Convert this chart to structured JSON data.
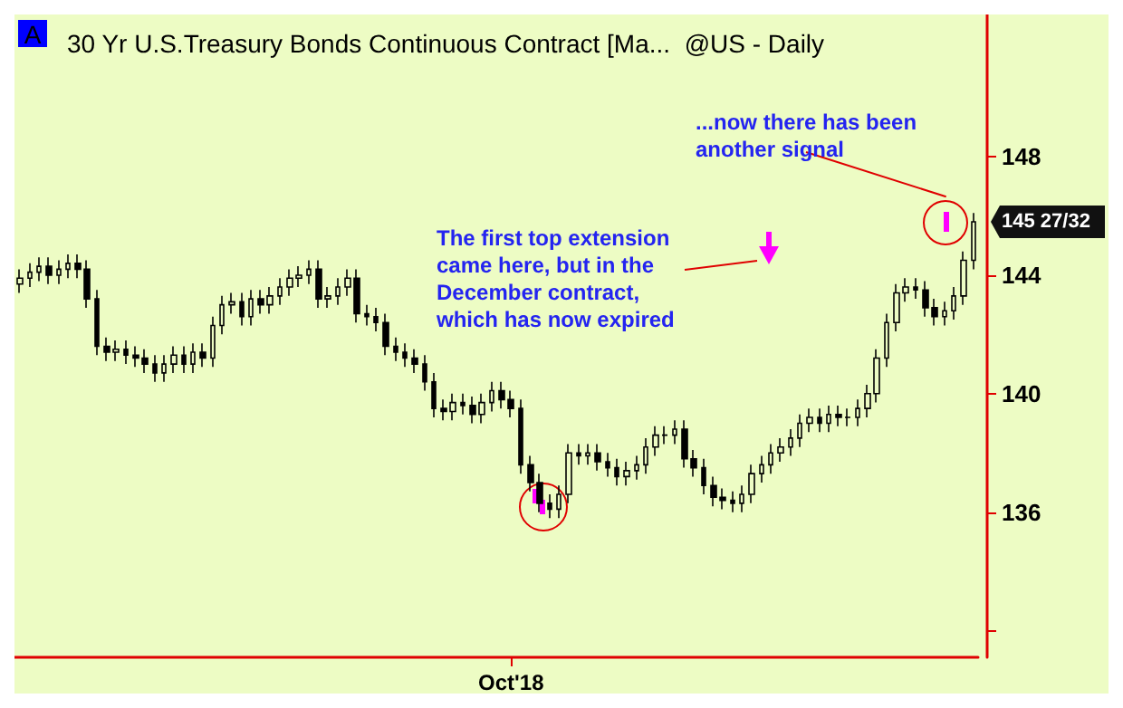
{
  "chart_data": {
    "type": "candlestick",
    "title": "30 Yr U.S.Treasury Bonds Continuous Contract [Ma...  @US - Daily",
    "annotations": [
      "A",
      "The first top extension\ncame here, but in the\nDecember contract,\nwhich has now expired",
      "...now there has been\nanother signal",
      "145 27/32"
    ],
    "categories": [
      null,
      null,
      null,
      null,
      null,
      null,
      null,
      null,
      null,
      null,
      null,
      null,
      null,
      null,
      null,
      null,
      null,
      null,
      null,
      null,
      null,
      null,
      null,
      null,
      null,
      null,
      null,
      null,
      null,
      null,
      null,
      null,
      null,
      null,
      null,
      null,
      null,
      null,
      null,
      null,
      null,
      null,
      null,
      null,
      null,
      null,
      null,
      null,
      null,
      null,
      null,
      "Oct'18",
      null,
      null,
      null,
      null,
      null,
      null,
      null,
      null,
      null,
      null,
      null,
      null,
      null,
      null,
      null,
      null,
      null,
      null,
      null,
      null,
      null,
      null,
      null,
      null,
      null,
      null,
      null,
      null,
      null,
      null,
      null,
      null,
      null,
      null,
      null,
      null,
      null,
      null,
      null,
      null,
      null,
      null,
      null,
      null,
      null,
      null,
      null,
      null
    ],
    "ohlc": [
      [
        143.7,
        144.2,
        143.4,
        143.9
      ],
      [
        143.9,
        144.4,
        143.6,
        144.1
      ],
      [
        144.1,
        144.6,
        143.8,
        144.3
      ],
      [
        144.3,
        144.6,
        143.7,
        144.0
      ],
      [
        144.0,
        144.5,
        143.7,
        144.2
      ],
      [
        144.2,
        144.7,
        143.9,
        144.4
      ],
      [
        144.4,
        144.7,
        143.9,
        144.2
      ],
      [
        144.2,
        144.5,
        142.9,
        143.2
      ],
      [
        143.2,
        143.5,
        141.3,
        141.6
      ],
      [
        141.6,
        141.9,
        141.1,
        141.4
      ],
      [
        141.4,
        141.8,
        141.1,
        141.5
      ],
      [
        141.5,
        141.8,
        141.0,
        141.3
      ],
      [
        141.3,
        141.6,
        140.9,
        141.2
      ],
      [
        141.2,
        141.5,
        140.7,
        141.0
      ],
      [
        141.0,
        141.3,
        140.4,
        140.7
      ],
      [
        140.7,
        141.3,
        140.4,
        141.0
      ],
      [
        141.0,
        141.6,
        140.7,
        141.3
      ],
      [
        141.3,
        141.6,
        140.7,
        141.0
      ],
      [
        141.0,
        141.7,
        140.7,
        141.4
      ],
      [
        141.4,
        141.7,
        140.9,
        141.2
      ],
      [
        141.2,
        142.6,
        140.9,
        142.3
      ],
      [
        142.3,
        143.3,
        142.0,
        143.0
      ],
      [
        143.0,
        143.4,
        142.7,
        143.1
      ],
      [
        143.1,
        143.4,
        142.3,
        142.6
      ],
      [
        142.6,
        143.5,
        142.3,
        143.2
      ],
      [
        143.2,
        143.5,
        142.7,
        143.0
      ],
      [
        143.0,
        143.6,
        142.7,
        143.3
      ],
      [
        143.3,
        143.9,
        143.0,
        143.6
      ],
      [
        143.6,
        144.2,
        143.3,
        143.9
      ],
      [
        143.9,
        144.3,
        143.6,
        144.0
      ],
      [
        144.0,
        144.5,
        143.7,
        144.2
      ],
      [
        144.2,
        144.5,
        142.9,
        143.2
      ],
      [
        143.2,
        143.6,
        142.9,
        143.3
      ],
      [
        143.3,
        143.9,
        143.0,
        143.6
      ],
      [
        143.6,
        144.2,
        143.3,
        143.9
      ],
      [
        143.9,
        144.2,
        142.4,
        142.7
      ],
      [
        142.7,
        143.0,
        142.3,
        142.6
      ],
      [
        142.6,
        142.9,
        142.1,
        142.4
      ],
      [
        142.4,
        142.7,
        141.3,
        141.6
      ],
      [
        141.6,
        141.9,
        141.1,
        141.4
      ],
      [
        141.4,
        141.7,
        140.9,
        141.2
      ],
      [
        141.2,
        141.5,
        140.7,
        141.0
      ],
      [
        141.0,
        141.3,
        140.1,
        140.4
      ],
      [
        140.4,
        140.7,
        139.2,
        139.5
      ],
      [
        139.5,
        139.8,
        139.1,
        139.4
      ],
      [
        139.4,
        140.0,
        139.1,
        139.7
      ],
      [
        139.7,
        140.0,
        139.3,
        139.6
      ],
      [
        139.6,
        139.9,
        139.0,
        139.3
      ],
      [
        139.3,
        140.0,
        139.0,
        139.7
      ],
      [
        139.7,
        140.4,
        139.4,
        140.1
      ],
      [
        140.1,
        140.4,
        139.5,
        139.8
      ],
      [
        139.8,
        140.1,
        139.2,
        139.5
      ],
      [
        139.5,
        139.8,
        137.3,
        137.6
      ],
      [
        137.6,
        137.9,
        136.7,
        137.0
      ],
      [
        137.0,
        137.3,
        136.0,
        136.3
      ],
      [
        136.3,
        136.6,
        135.8,
        136.1
      ],
      [
        136.1,
        136.9,
        135.8,
        136.6
      ],
      [
        136.6,
        138.3,
        136.3,
        138.0
      ],
      [
        138.0,
        138.3,
        137.6,
        137.9
      ],
      [
        137.9,
        138.3,
        137.6,
        138.0
      ],
      [
        138.0,
        138.3,
        137.4,
        137.7
      ],
      [
        137.7,
        138.0,
        137.2,
        137.5
      ],
      [
        137.5,
        137.8,
        136.9,
        137.2
      ],
      [
        137.2,
        137.7,
        136.9,
        137.4
      ],
      [
        137.4,
        137.9,
        137.1,
        137.6
      ],
      [
        137.6,
        138.5,
        137.3,
        138.2
      ],
      [
        138.2,
        138.9,
        137.9,
        138.6
      ],
      [
        138.6,
        138.9,
        138.3,
        138.6
      ],
      [
        138.6,
        139.1,
        138.3,
        138.8
      ],
      [
        138.8,
        139.1,
        137.5,
        137.8
      ],
      [
        137.8,
        138.1,
        137.2,
        137.5
      ],
      [
        137.5,
        137.8,
        136.6,
        136.9
      ],
      [
        136.9,
        137.2,
        136.2,
        136.5
      ],
      [
        136.5,
        136.8,
        136.1,
        136.4
      ],
      [
        136.4,
        136.7,
        136.0,
        136.3
      ],
      [
        136.3,
        136.9,
        136.0,
        136.6
      ],
      [
        136.6,
        137.6,
        136.3,
        137.3
      ],
      [
        137.3,
        137.9,
        137.0,
        137.6
      ],
      [
        137.6,
        138.3,
        137.3,
        138.0
      ],
      [
        138.0,
        138.5,
        137.7,
        138.2
      ],
      [
        138.2,
        138.8,
        137.9,
        138.5
      ],
      [
        138.5,
        139.3,
        138.2,
        139.0
      ],
      [
        139.0,
        139.5,
        138.7,
        139.2
      ],
      [
        139.2,
        139.5,
        138.7,
        139.0
      ],
      [
        139.0,
        139.6,
        138.7,
        139.3
      ],
      [
        139.3,
        139.6,
        138.9,
        139.2
      ],
      [
        139.2,
        139.5,
        138.9,
        139.2
      ],
      [
        139.2,
        139.8,
        138.9,
        139.5
      ],
      [
        139.5,
        140.3,
        139.2,
        140.0
      ],
      [
        140.0,
        141.5,
        139.7,
        141.2
      ],
      [
        141.2,
        142.7,
        140.9,
        142.4
      ],
      [
        142.4,
        143.7,
        142.1,
        143.4
      ],
      [
        143.4,
        143.9,
        143.1,
        143.6
      ],
      [
        143.6,
        143.9,
        143.2,
        143.5
      ],
      [
        143.5,
        143.8,
        142.6,
        142.9
      ],
      [
        142.9,
        143.2,
        142.3,
        142.6
      ],
      [
        142.6,
        143.1,
        142.3,
        142.8
      ],
      [
        142.8,
        143.6,
        142.5,
        143.3
      ],
      [
        143.3,
        144.8,
        143.0,
        144.5
      ],
      [
        144.5,
        146.1,
        144.2,
        145.8
      ]
    ],
    "ylim": [
      131.1,
      152.8
    ],
    "yticks": [
      {
        "value": 132,
        "label": null
      },
      136,
      140,
      144,
      148
    ],
    "grid": false
  }
}
